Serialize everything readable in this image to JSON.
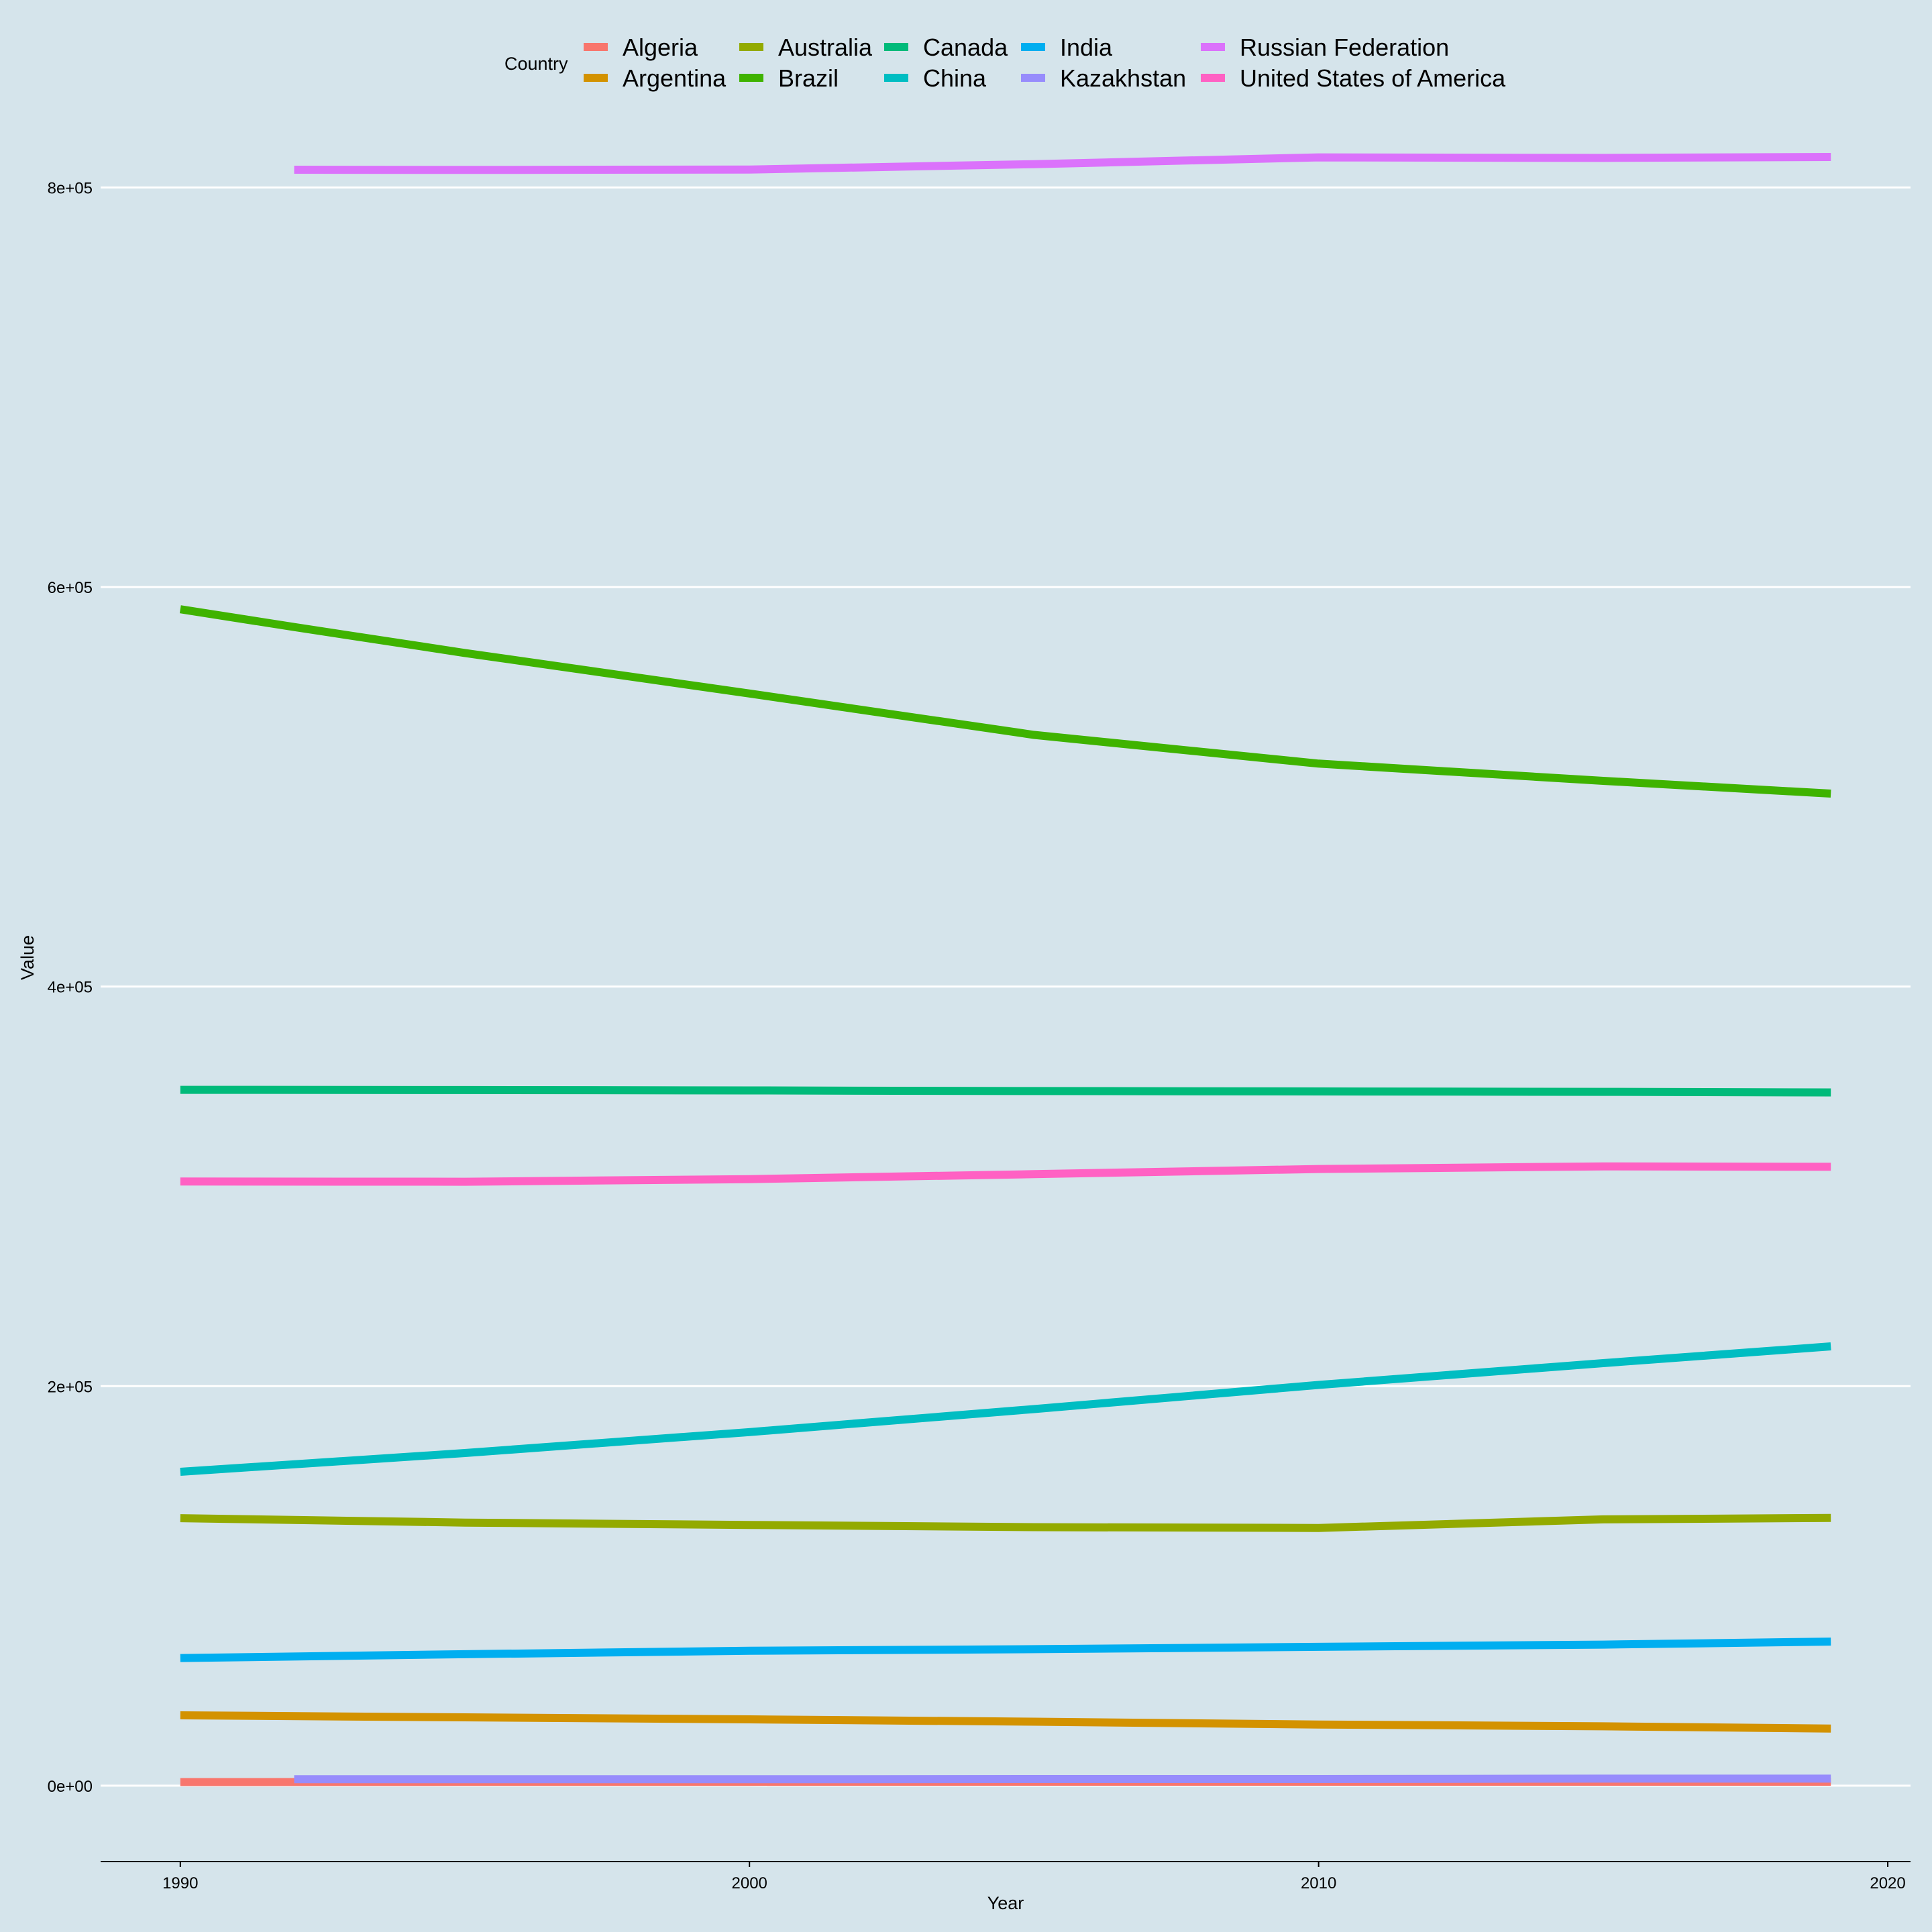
{
  "chart_data": {
    "type": "line",
    "title": "",
    "xlabel": "Year",
    "ylabel": "Value",
    "xlim": [
      1988.6,
      2020.4
    ],
    "ylim": [
      -38000,
      867000
    ],
    "x_ticks": [
      1990,
      2000,
      2010,
      2020
    ],
    "y_ticks": [
      0,
      200000,
      400000,
      600000,
      800000
    ],
    "y_tick_labels": [
      "0e+00",
      "2e+05",
      "4e+05",
      "6e+05",
      "8e+05"
    ],
    "grid": "horizontal major",
    "legend": {
      "title": "Country",
      "position": "top",
      "columns": [
        [
          "Algeria",
          "Argentina"
        ],
        [
          "Australia",
          "Brazil"
        ],
        [
          "Canada",
          "China"
        ],
        [
          "India",
          "Kazakhstan"
        ],
        [
          "Russian Federation",
          "United States of America"
        ]
      ]
    },
    "series": [
      {
        "name": "Algeria",
        "color": "#f8766d",
        "x": [
          1990,
          1995,
          2000,
          2005,
          2010,
          2015,
          2019
        ],
        "y": [
          1800,
          1850,
          1900,
          1950,
          1950,
          1950,
          1950
        ]
      },
      {
        "name": "Argentina",
        "color": "#d39200",
        "x": [
          1990,
          1995,
          2000,
          2005,
          2010,
          2015,
          2019
        ],
        "y": [
          35200,
          34200,
          33200,
          32000,
          30600,
          29700,
          28600
        ]
      },
      {
        "name": "Australia",
        "color": "#93aa00",
        "x": [
          1990,
          1995,
          2000,
          2005,
          2010,
          2015,
          2019
        ],
        "y": [
          133900,
          131700,
          130500,
          129400,
          129000,
          133300,
          134000
        ]
      },
      {
        "name": "Brazil",
        "color": "#3fb300",
        "x": [
          1990,
          1992,
          1995,
          2000,
          2005,
          2010,
          2015,
          2019
        ],
        "y": [
          588900,
          580000,
          567000,
          546700,
          526000,
          511600,
          503000,
          496600
        ]
      },
      {
        "name": "Canada",
        "color": "#00ba7a",
        "x": [
          1990,
          1995,
          2000,
          2005,
          2010,
          2015,
          2019
        ],
        "y": [
          348300,
          348200,
          348000,
          347700,
          347500,
          347300,
          347000
        ]
      },
      {
        "name": "China",
        "color": "#00bdc2",
        "x": [
          1990,
          1995,
          2000,
          2005,
          2010,
          2015,
          2019
        ],
        "y": [
          157100,
          166500,
          177000,
          188500,
          200600,
          211500,
          219900
        ]
      },
      {
        "name": "India",
        "color": "#00aef0",
        "x": [
          1990,
          1995,
          2000,
          2005,
          2010,
          2015,
          2019
        ],
        "y": [
          63900,
          65800,
          67500,
          68300,
          69500,
          70600,
          72100
        ]
      },
      {
        "name": "Kazakhstan",
        "color": "#978cfc",
        "x": [
          1992,
          1995,
          2000,
          2005,
          2010,
          2015,
          2019
        ],
        "y": [
          3200,
          3200,
          3200,
          3300,
          3300,
          3500,
          3500
        ]
      },
      {
        "name": "Russian Federation",
        "color": "#db72fb",
        "x": [
          1992,
          1995,
          2000,
          2005,
          2010,
          2015,
          2019
        ],
        "y": [
          808900,
          808800,
          809000,
          811700,
          815100,
          814800,
          815300
        ]
      },
      {
        "name": "United States of America",
        "color": "#ff61c3",
        "x": [
          1990,
          1995,
          2000,
          2005,
          2010,
          2015,
          2019
        ],
        "y": [
          302400,
          302300,
          303600,
          306100,
          308700,
          310000,
          309800
        ]
      }
    ]
  }
}
